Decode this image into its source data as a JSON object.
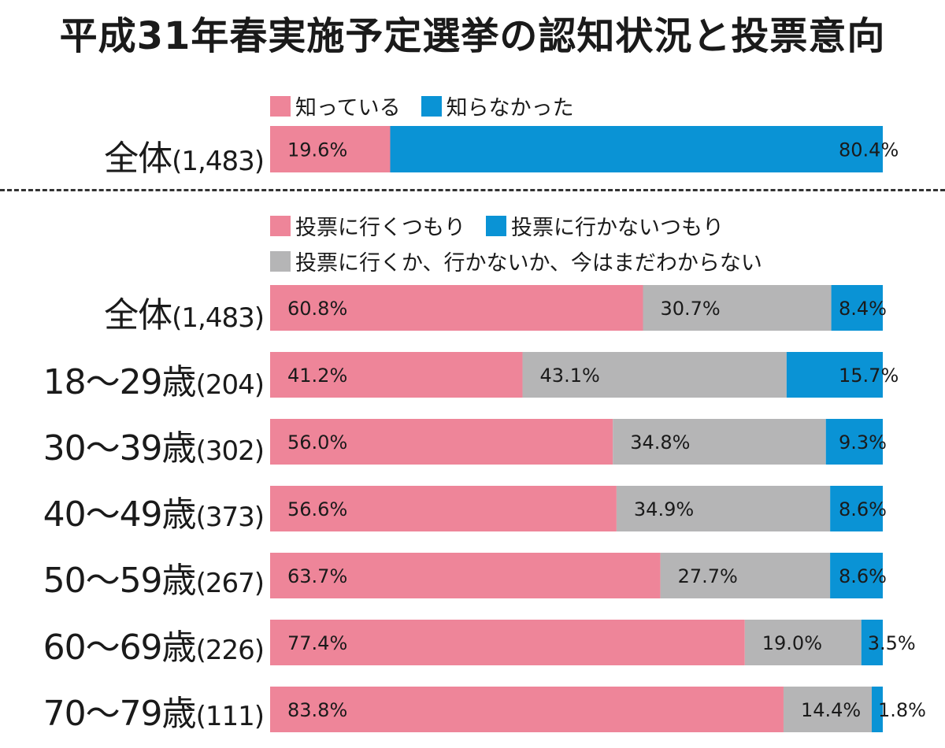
{
  "title": "平成31年春実施予定選挙の認知状況と投票意向",
  "colors": {
    "pink": "#ee8599",
    "blue": "#0a93d5",
    "gray": "#b5b5b6"
  },
  "chart_data": [
    {
      "type": "bar",
      "orientation": "horizontal-stacked-100",
      "legend": [
        {
          "label": "知っている",
          "color": "#ee8599"
        },
        {
          "label": "知らなかった",
          "color": "#0a93d5"
        }
      ],
      "rows": [
        {
          "name": "全体",
          "count": "(1,483)",
          "values": [
            19.6,
            80.4
          ],
          "labels": [
            "19.6%",
            "80.4%"
          ]
        }
      ]
    },
    {
      "type": "bar",
      "orientation": "horizontal-stacked-100",
      "legend": [
        {
          "label": "投票に行くつもり",
          "color": "#ee8599"
        },
        {
          "label": "投票に行かないつもり",
          "color": "#0a93d5"
        },
        {
          "label": "投票に行くか、行かないか、今はまだわからない",
          "color": "#b5b5b6"
        }
      ],
      "segment_order": [
        "投票に行くつもり",
        "投票に行くか、行かないか、今はまだわからない",
        "投票に行かないつもり"
      ],
      "rows": [
        {
          "name": "全体",
          "count": "(1,483)",
          "values": [
            60.8,
            30.7,
            8.4
          ],
          "labels": [
            "60.8%",
            "30.7%",
            "8.4%"
          ]
        },
        {
          "name": "18〜29歳",
          "count": "(204)",
          "values": [
            41.2,
            43.1,
            15.7
          ],
          "labels": [
            "41.2%",
            "43.1%",
            "15.7%"
          ]
        },
        {
          "name": "30〜39歳",
          "count": "(302)",
          "values": [
            56.0,
            34.8,
            9.3
          ],
          "labels": [
            "56.0%",
            "34.8%",
            "9.3%"
          ]
        },
        {
          "name": "40〜49歳",
          "count": "(373)",
          "values": [
            56.6,
            34.9,
            8.6
          ],
          "labels": [
            "56.6%",
            "34.9%",
            "8.6%"
          ]
        },
        {
          "name": "50〜59歳",
          "count": "(267)",
          "values": [
            63.7,
            27.7,
            8.6
          ],
          "labels": [
            "63.7%",
            "27.7%",
            "8.6%"
          ]
        },
        {
          "name": "60〜69歳",
          "count": "(226)",
          "values": [
            77.4,
            19.0,
            3.5
          ],
          "labels": [
            "77.4%",
            "19.0%",
            "3.5%"
          ]
        },
        {
          "name": "70〜79歳",
          "count": "(111)",
          "values": [
            83.8,
            14.4,
            1.8
          ],
          "labels": [
            "83.8%",
            "14.4%",
            "1.8%"
          ]
        }
      ]
    }
  ]
}
